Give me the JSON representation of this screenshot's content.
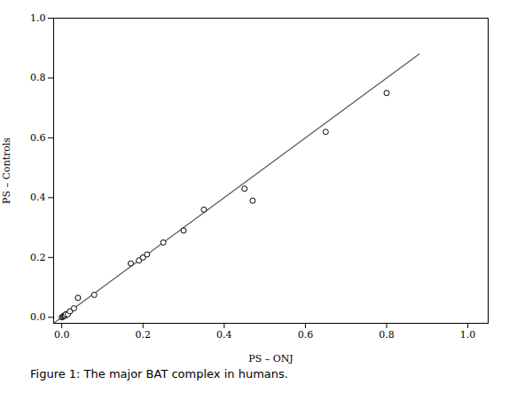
{
  "chart_data": {
    "type": "scatter",
    "x_label": "PS – ONJ",
    "y_label": "PS – Controls",
    "caption": "Figure 1: The major BAT complex in humans.",
    "series": [
      {
        "type": "scatter",
        "marker": "open_circle",
        "color": "black",
        "x": [
          0.0,
          0.003,
          0.005,
          0.008,
          0.01,
          0.015,
          0.02,
          0.03,
          0.04,
          0.08,
          0.17,
          0.19,
          0.2,
          0.21,
          0.25,
          0.3,
          0.35,
          0.45,
          0.47,
          0.65,
          0.8
        ],
        "values": [
          0.0,
          0.002,
          0.005,
          0.005,
          0.01,
          0.01,
          0.02,
          0.03,
          0.065,
          0.075,
          0.18,
          0.19,
          0.2,
          0.21,
          0.25,
          0.29,
          0.36,
          0.43,
          0.39,
          0.62,
          0.75
        ]
      },
      {
        "type": "line",
        "color": "#555555",
        "x": [
          -0.02,
          0.88
        ],
        "values": [
          -0.02,
          0.88
        ]
      }
    ],
    "xlim": [
      -0.02,
      1.05
    ],
    "ylim": [
      -0.02,
      1.0
    ],
    "xticks": [
      {
        "value": 0.0,
        "label": "0.0"
      },
      {
        "value": 0.2,
        "label": "0.2"
      },
      {
        "value": 0.4,
        "label": "0.4"
      },
      {
        "value": 0.6,
        "label": "0.6"
      },
      {
        "value": 0.8,
        "label": "0.8"
      },
      {
        "value": 1.0,
        "label": "1.0"
      }
    ],
    "yticks": [
      {
        "value": 0.0,
        "label": "0.0"
      },
      {
        "value": 0.2,
        "label": "0.2"
      },
      {
        "value": 0.4,
        "label": "0.4"
      },
      {
        "value": 0.6,
        "label": "0.6"
      },
      {
        "value": 0.8,
        "label": "0.8"
      },
      {
        "value": 1.0,
        "label": "1.0"
      }
    ],
    "grid": false
  }
}
